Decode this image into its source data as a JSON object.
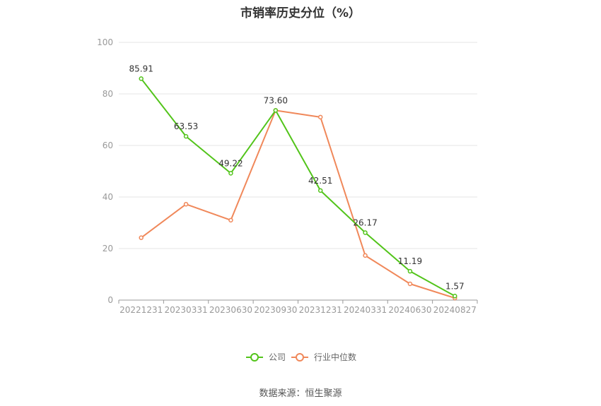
{
  "chart_data": {
    "type": "line",
    "title": "市销率历史分位（%）",
    "categories": [
      "20221231",
      "20230331",
      "20230630",
      "20230930",
      "20231231",
      "20240331",
      "20240630",
      "20240827"
    ],
    "yticks": [
      0,
      20,
      40,
      60,
      80,
      100
    ],
    "ylim": [
      0,
      100
    ],
    "grid": true,
    "legend_position": "bottom",
    "series": [
      {
        "name": "公司",
        "color": "#52c41a",
        "values": [
          85.91,
          63.53,
          49.22,
          73.6,
          42.51,
          26.17,
          11.19,
          1.57
        ],
        "labels": [
          "85.91",
          "63.53",
          "49.22",
          "73.60",
          "42.51",
          "26.17",
          "11.19",
          "1.57"
        ]
      },
      {
        "name": "行业中位数",
        "color": "#f0885a",
        "values": [
          24.2,
          37.2,
          31.0,
          73.6,
          71.0,
          17.3,
          6.3,
          0.8
        ]
      }
    ]
  },
  "source": "数据来源：恒生聚源"
}
